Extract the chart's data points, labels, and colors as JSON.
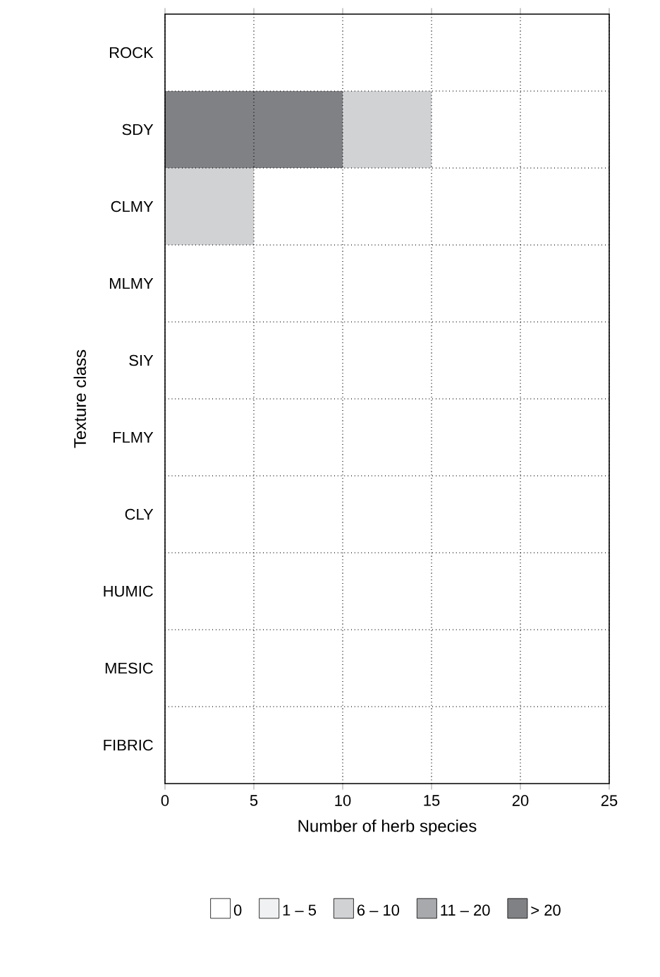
{
  "chart_data": {
    "type": "bar",
    "orientation": "horizontal",
    "categories": [
      "ROCK",
      "SDY",
      "CLMY",
      "MLMY",
      "SIY",
      "FLMY",
      "CLY",
      "HUMIC",
      "MESIC",
      "FIBRIC"
    ],
    "series": [
      {
        "name": "0",
        "color": "#ffffff",
        "values": [
          null,
          null,
          null,
          null,
          null,
          null,
          null,
          null,
          null,
          null
        ]
      },
      {
        "name": "1 – 5",
        "color": "#f0f1f2",
        "values": [
          null,
          null,
          null,
          null,
          null,
          null,
          null,
          null,
          null,
          null
        ]
      },
      {
        "name": "6 – 10",
        "color": "#d1d2d4",
        "values": [
          null,
          5,
          5,
          null,
          null,
          null,
          null,
          null,
          null,
          null
        ],
        "base": [
          null,
          10,
          0,
          null,
          null,
          null,
          null,
          null,
          null,
          null
        ]
      },
      {
        "name": "11 – 20",
        "color": "#a7a9ac",
        "values": [
          null,
          null,
          null,
          null,
          null,
          null,
          null,
          null,
          null,
          null
        ]
      },
      {
        "name": "> 20",
        "color": "#808184",
        "values": [
          null,
          10,
          null,
          null,
          null,
          null,
          null,
          null,
          null,
          null
        ],
        "base": [
          null,
          0,
          null,
          null,
          null,
          null,
          null,
          null,
          null,
          null
        ]
      }
    ],
    "xlim": [
      0,
      25
    ],
    "xticks": [
      0,
      5,
      10,
      15,
      20,
      25
    ],
    "xlabel": "Number of herb species",
    "ylabel": "Texture class",
    "grid": true,
    "legend": "bottom"
  }
}
